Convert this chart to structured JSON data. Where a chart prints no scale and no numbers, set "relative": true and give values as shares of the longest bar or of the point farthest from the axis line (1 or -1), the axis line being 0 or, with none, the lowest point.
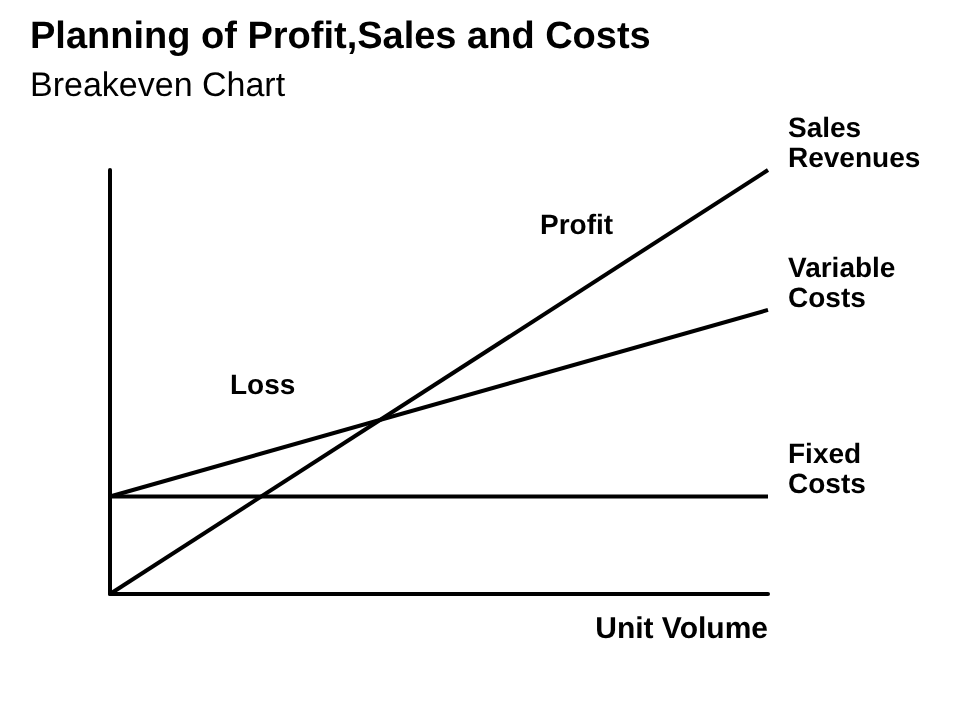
{
  "chart_data": {
    "type": "line",
    "title": "Planning of Profit,Sales and Costs",
    "subtitle": "Breakeven Chart",
    "xlabel": "Unit Volume",
    "relative": true,
    "categories": [
      null,
      null
    ],
    "series": [
      {
        "name": "Sales Revenues",
        "color": "#000000",
        "values": [
          0,
          1
        ]
      },
      {
        "name": "Variable Costs",
        "color": "#000000",
        "values": [
          0.23,
          0.67
        ]
      },
      {
        "name": "Fixed Costs",
        "color": "#000000",
        "values": [
          0.23,
          0.23
        ]
      }
    ],
    "annotations": [
      "Profit",
      "Loss"
    ],
    "grid": false,
    "legend": false,
    "line_style": "solid"
  }
}
